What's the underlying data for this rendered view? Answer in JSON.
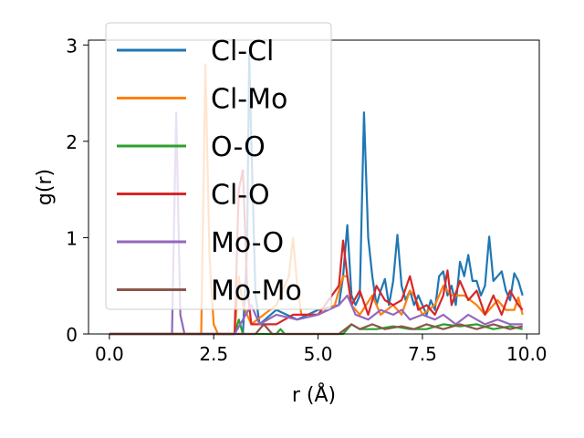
{
  "chart_data": {
    "type": "line",
    "title": "",
    "xlabel": "r (Å)",
    "ylabel": "g(r)",
    "xlim": [
      -0.5,
      10.3
    ],
    "ylim": [
      0,
      3.05
    ],
    "xticks": [
      0.0,
      2.5,
      5.0,
      7.5,
      10.0
    ],
    "xtick_labels": [
      "0.0",
      "2.5",
      "5.0",
      "7.5",
      "10.0"
    ],
    "yticks": [
      0,
      1,
      2,
      3
    ],
    "ytick_labels": [
      "0",
      "1",
      "2",
      "3"
    ],
    "grid": false,
    "legend_position": "upper-left",
    "series": [
      {
        "name": "Cl-Cl",
        "color": "#1f77b4",
        "points": [
          [
            0,
            0
          ],
          [
            3.2,
            0
          ],
          [
            3.3,
            0.9
          ],
          [
            3.35,
            2.9
          ],
          [
            3.4,
            2.0
          ],
          [
            3.5,
            0.4
          ],
          [
            3.6,
            0.1
          ],
          [
            4.0,
            0.25
          ],
          [
            4.5,
            0.15
          ],
          [
            5.0,
            0.25
          ],
          [
            5.5,
            0.3
          ],
          [
            5.6,
            0.6
          ],
          [
            5.7,
            1.13
          ],
          [
            5.8,
            0.4
          ],
          [
            5.9,
            0.3
          ],
          [
            6.0,
            0.4
          ],
          [
            6.1,
            2.3
          ],
          [
            6.2,
            1.0
          ],
          [
            6.3,
            0.6
          ],
          [
            6.4,
            0.3
          ],
          [
            6.5,
            0.45
          ],
          [
            6.6,
            0.57
          ],
          [
            6.7,
            0.3
          ],
          [
            6.8,
            0.55
          ],
          [
            6.9,
            1.03
          ],
          [
            7.0,
            0.5
          ],
          [
            7.1,
            0.35
          ],
          [
            7.2,
            0.45
          ],
          [
            7.3,
            0.3
          ],
          [
            7.4,
            0.4
          ],
          [
            7.5,
            0.3
          ],
          [
            7.6,
            0.2
          ],
          [
            7.7,
            0.35
          ],
          [
            7.8,
            0.25
          ],
          [
            7.9,
            0.6
          ],
          [
            8.0,
            0.65
          ],
          [
            8.1,
            0.4
          ],
          [
            8.2,
            0.5
          ],
          [
            8.3,
            0.3
          ],
          [
            8.4,
            0.75
          ],
          [
            8.5,
            0.6
          ],
          [
            8.6,
            0.82
          ],
          [
            8.7,
            0.55
          ],
          [
            8.8,
            0.55
          ],
          [
            8.9,
            0.4
          ],
          [
            9.0,
            0.5
          ],
          [
            9.1,
            1.01
          ],
          [
            9.2,
            0.55
          ],
          [
            9.3,
            0.6
          ],
          [
            9.4,
            0.65
          ],
          [
            9.5,
            0.45
          ],
          [
            9.6,
            0.35
          ],
          [
            9.7,
            0.63
          ],
          [
            9.8,
            0.55
          ],
          [
            9.9,
            0.4
          ]
        ]
      },
      {
        "name": "Cl-Mo",
        "color": "#ff7f0e",
        "points": [
          [
            0,
            0
          ],
          [
            2.2,
            0
          ],
          [
            2.3,
            2.8
          ],
          [
            2.4,
            0.8
          ],
          [
            2.5,
            0.1
          ],
          [
            2.6,
            0
          ],
          [
            3.0,
            0
          ],
          [
            3.1,
            0.6
          ],
          [
            3.2,
            0.3
          ],
          [
            3.4,
            0.1
          ],
          [
            4.0,
            0.3
          ],
          [
            4.3,
            0.6
          ],
          [
            4.4,
            1.0
          ],
          [
            4.5,
            0.5
          ],
          [
            4.6,
            0.2
          ],
          [
            5.0,
            0.2
          ],
          [
            5.4,
            0.3
          ],
          [
            5.6,
            0.6
          ],
          [
            5.7,
            0.6
          ],
          [
            5.8,
            0.3
          ],
          [
            6.0,
            0.2
          ],
          [
            6.3,
            0.4
          ],
          [
            6.5,
            0.2
          ],
          [
            6.8,
            0.3
          ],
          [
            7.0,
            0.2
          ],
          [
            7.2,
            0.45
          ],
          [
            7.3,
            0.4
          ],
          [
            7.5,
            0.2
          ],
          [
            7.8,
            0.3
          ],
          [
            8.0,
            0.5
          ],
          [
            8.2,
            0.4
          ],
          [
            8.5,
            0.4
          ],
          [
            8.8,
            0.3
          ],
          [
            9.0,
            0.2
          ],
          [
            9.3,
            0.35
          ],
          [
            9.5,
            0.25
          ],
          [
            9.7,
            0.25
          ],
          [
            9.8,
            0.38
          ],
          [
            9.9,
            0.2
          ]
        ]
      },
      {
        "name": "O-O",
        "color": "#2ca02c",
        "points": [
          [
            0,
            0
          ],
          [
            3.0,
            0
          ],
          [
            3.1,
            0.15
          ],
          [
            3.2,
            0
          ],
          [
            4.0,
            0
          ],
          [
            4.1,
            0.05
          ],
          [
            4.2,
            0
          ],
          [
            5.6,
            0
          ],
          [
            5.8,
            0.1
          ],
          [
            6.0,
            0.05
          ],
          [
            6.4,
            0.05
          ],
          [
            6.8,
            0.08
          ],
          [
            7.2,
            0.05
          ],
          [
            7.6,
            0.05
          ],
          [
            8.0,
            0.1
          ],
          [
            8.4,
            0.08
          ],
          [
            8.8,
            0.1
          ],
          [
            9.2,
            0.05
          ],
          [
            9.6,
            0.08
          ],
          [
            9.9,
            0.05
          ]
        ]
      },
      {
        "name": "Cl-O",
        "color": "#d62728",
        "points": [
          [
            0,
            0
          ],
          [
            3.0,
            0
          ],
          [
            3.1,
            1.5
          ],
          [
            3.2,
            1.7
          ],
          [
            3.3,
            0.5
          ],
          [
            3.4,
            0.1
          ],
          [
            4.0,
            0.1
          ],
          [
            4.4,
            0.2
          ],
          [
            5.0,
            0.2
          ],
          [
            5.5,
            0.5
          ],
          [
            5.6,
            0.97
          ],
          [
            5.7,
            0.6
          ],
          [
            5.8,
            0.3
          ],
          [
            6.0,
            0.45
          ],
          [
            6.2,
            0.2
          ],
          [
            6.4,
            0.5
          ],
          [
            6.6,
            0.35
          ],
          [
            6.8,
            0.3
          ],
          [
            7.0,
            0.35
          ],
          [
            7.2,
            0.6
          ],
          [
            7.4,
            0.25
          ],
          [
            7.6,
            0.3
          ],
          [
            7.8,
            0.2
          ],
          [
            8.0,
            0.4
          ],
          [
            8.1,
            0.66
          ],
          [
            8.2,
            0.3
          ],
          [
            8.4,
            0.55
          ],
          [
            8.6,
            0.35
          ],
          [
            8.8,
            0.45
          ],
          [
            9.0,
            0.2
          ],
          [
            9.2,
            0.4
          ],
          [
            9.4,
            0.2
          ],
          [
            9.6,
            0.45
          ],
          [
            9.8,
            0.3
          ],
          [
            9.9,
            0.25
          ]
        ]
      },
      {
        "name": "Mo-O",
        "color": "#9467bd",
        "points": [
          [
            0,
            0
          ],
          [
            1.5,
            0
          ],
          [
            1.6,
            2.3
          ],
          [
            1.7,
            0.2
          ],
          [
            1.8,
            0
          ],
          [
            3.0,
            0
          ],
          [
            3.4,
            0.3
          ],
          [
            3.6,
            0.1
          ],
          [
            4.0,
            0.2
          ],
          [
            4.5,
            0.15
          ],
          [
            5.0,
            0.2
          ],
          [
            5.5,
            0.3
          ],
          [
            5.7,
            0.4
          ],
          [
            5.9,
            0.2
          ],
          [
            6.2,
            0.15
          ],
          [
            6.5,
            0.25
          ],
          [
            6.8,
            0.2
          ],
          [
            7.0,
            0.25
          ],
          [
            7.2,
            0.15
          ],
          [
            7.5,
            0.2
          ],
          [
            7.8,
            0.15
          ],
          [
            8.0,
            0.2
          ],
          [
            8.3,
            0.1
          ],
          [
            8.6,
            0.2
          ],
          [
            9.0,
            0.1
          ],
          [
            9.3,
            0.15
          ],
          [
            9.6,
            0.1
          ],
          [
            9.9,
            0.1
          ]
        ]
      },
      {
        "name": "Mo-Mo",
        "color": "#8c564b",
        "points": [
          [
            0,
            0
          ],
          [
            3.5,
            0
          ],
          [
            3.7,
            0.1
          ],
          [
            3.9,
            0
          ],
          [
            5.5,
            0
          ],
          [
            5.8,
            0.1
          ],
          [
            6.0,
            0.05
          ],
          [
            6.3,
            0.1
          ],
          [
            6.6,
            0.05
          ],
          [
            7.0,
            0.08
          ],
          [
            7.3,
            0.05
          ],
          [
            7.6,
            0.1
          ],
          [
            8.0,
            0.05
          ],
          [
            8.4,
            0.1
          ],
          [
            8.8,
            0.05
          ],
          [
            9.2,
            0.1
          ],
          [
            9.6,
            0.05
          ],
          [
            9.9,
            0.08
          ]
        ]
      }
    ]
  }
}
